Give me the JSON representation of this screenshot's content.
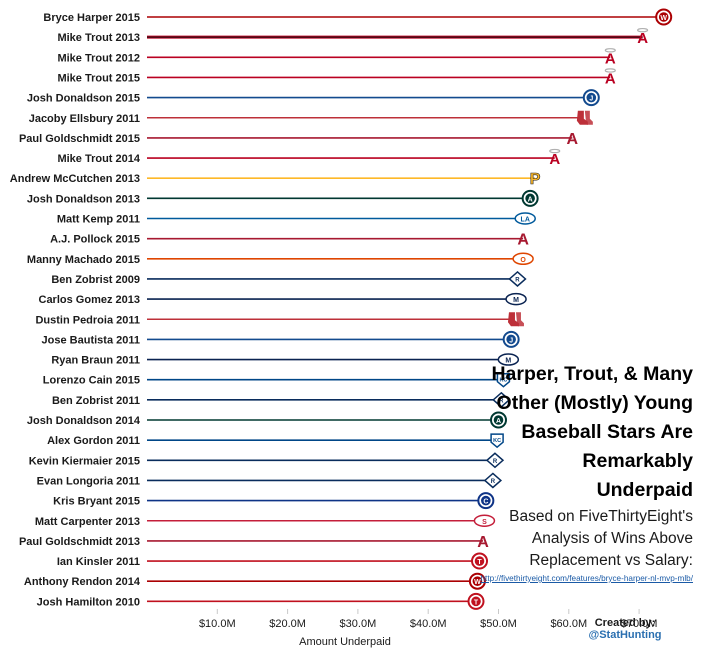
{
  "chart_data": {
    "type": "bar",
    "orientation": "horizontal",
    "title": "Harper, Trout, & Many Other (Mostly) Young Baseball Stars Are Remarkably Underpaid",
    "title_lines": [
      "Harper, Trout, & Many",
      "Other (Mostly) Young",
      "Baseball Stars Are",
      "Remarkably",
      "Underpaid"
    ],
    "subtitle": "Based on FiveThirtyEight's Analysis of Wins Above Replacement vs Salary:",
    "subtitle_lines": [
      "Based on FiveThirtyEight's",
      "Analysis of Wins Above",
      "Replacement vs Salary:"
    ],
    "source_url": "http://fivethirtyeight.com/features/bryce-harper-nl-mvp-mlb/",
    "xlabel": "Amount Underpaid",
    "ylabel": "",
    "xlim": [
      0,
      80
    ],
    "x_ticks": [
      10,
      20,
      30,
      40,
      50,
      60,
      70
    ],
    "x_tick_labels": [
      "$10.0M",
      "$20.0M",
      "$30.0M",
      "$40.0M",
      "$50.0M",
      "$60.0M",
      "$70.0M"
    ],
    "grid": false,
    "categories": [
      "Bryce Harper 2015",
      "Mike Trout 2013",
      "Mike Trout 2012",
      "Mike Trout 2015",
      "Josh Donaldson 2015",
      "Jacoby Ellsbury 2011",
      "Paul Goldschmidt 2015",
      "Mike Trout 2014",
      "Andrew McCutchen 2013",
      "Josh Donaldson 2013",
      "Matt Kemp 2011",
      "A.J. Pollock 2015",
      "Manny Machado 2015",
      "Ben Zobrist 2009",
      "Carlos Gomez 2013",
      "Dustin Pedroia 2011",
      "Jose Bautista 2011",
      "Ryan Braun 2011",
      "Lorenzo Cain 2015",
      "Ben Zobrist 2011",
      "Josh Donaldson 2014",
      "Alex Gordon 2011",
      "Kevin Kiermaier 2015",
      "Evan Longoria 2011",
      "Kris Bryant 2015",
      "Matt Carpenter 2013",
      "Paul Goldschmidt 2013",
      "Ian Kinsler 2011",
      "Anthony Rendon 2014",
      "Josh Hamilton 2010"
    ],
    "values": [
      73.5,
      70.5,
      65.9,
      65.9,
      63.2,
      62.0,
      60.5,
      58.0,
      55.2,
      54.5,
      53.8,
      53.5,
      53.5,
      52.7,
      52.5,
      52.2,
      51.8,
      51.4,
      50.7,
      50.4,
      50.0,
      49.8,
      49.5,
      49.2,
      48.2,
      48.0,
      47.8,
      47.3,
      47.0,
      46.8
    ],
    "teams": [
      "nationals",
      "angels",
      "angels",
      "angels",
      "blue-jays",
      "red-sox",
      "diamondbacks",
      "angels",
      "pirates",
      "athletics",
      "dodgers",
      "diamondbacks",
      "orioles",
      "rays",
      "brewers",
      "red-sox",
      "blue-jays",
      "brewers",
      "royals",
      "rays",
      "athletics",
      "royals",
      "rays",
      "rays",
      "cubs",
      "cardinals",
      "diamondbacks",
      "rangers",
      "nationals",
      "rangers"
    ],
    "team_colors": {
      "nationals": "#ab0003",
      "angels": "#ba0021",
      "blue-jays": "#134a8e",
      "red-sox": "#bd3039",
      "diamondbacks": "#a71930",
      "pirates": "#fdb827",
      "athletics": "#003831",
      "dodgers": "#005a9c",
      "orioles": "#df4601",
      "rays": "#092c5c",
      "brewers": "#0a2351",
      "royals": "#004687",
      "cubs": "#0e3386",
      "cardinals": "#c41e3a",
      "rangers": "#c0111f"
    }
  },
  "credit": {
    "line1": "Created by:",
    "line2": "@StatHunting"
  }
}
